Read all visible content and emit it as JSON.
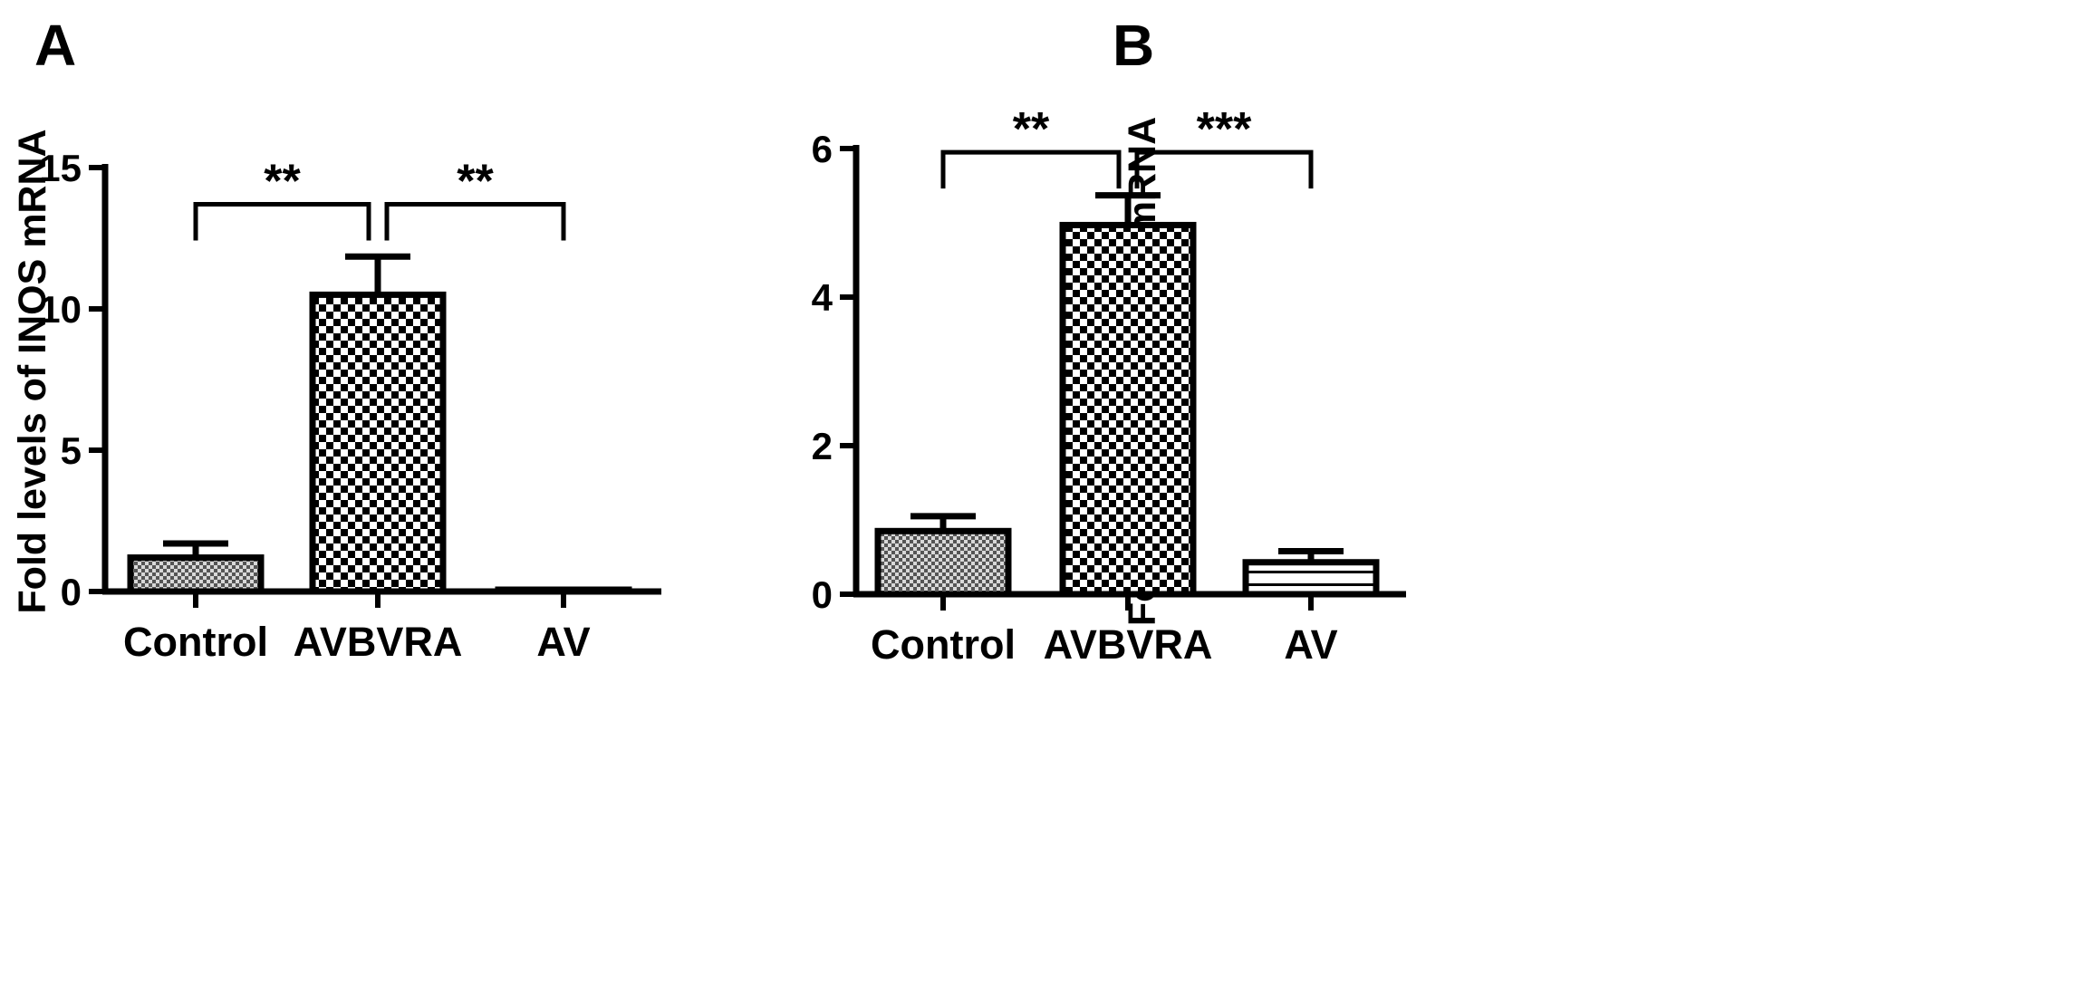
{
  "chart_data": [
    {
      "panel": "A",
      "type": "bar",
      "categories": [
        "Control",
        "AVBVRA",
        "AV"
      ],
      "values": [
        1.2,
        10.5,
        0.05
      ],
      "errors": [
        0.5,
        1.35,
        0.0
      ],
      "patterns": [
        "fine",
        "checker",
        "fine"
      ],
      "ylabel": "Fold levels of  INOS  mRNA",
      "ylim": [
        0,
        15
      ],
      "yticks": [
        0,
        5,
        10,
        15
      ],
      "significance": [
        {
          "from": 0,
          "to": 1,
          "label": "**",
          "level": 13.7
        },
        {
          "from": 1,
          "to": 2,
          "label": "**",
          "level": 13.7
        }
      ]
    },
    {
      "panel": "B",
      "type": "bar",
      "categories": [
        "Control",
        "AVBVRA",
        "AV"
      ],
      "values": [
        0.85,
        4.97,
        0.43
      ],
      "errors": [
        0.2,
        0.4,
        0.15
      ],
      "patterns": [
        "fine",
        "checker",
        "lines"
      ],
      "ylabel": "Fold levels of ARG-1  mRNA",
      "ylim": [
        0,
        6
      ],
      "yticks": [
        0,
        2,
        4,
        6
      ],
      "significance": [
        {
          "from": 0,
          "to": 1,
          "label": "**",
          "level": 5.95
        },
        {
          "from": 1,
          "to": 2,
          "label": "***",
          "level": 5.95
        }
      ]
    }
  ]
}
